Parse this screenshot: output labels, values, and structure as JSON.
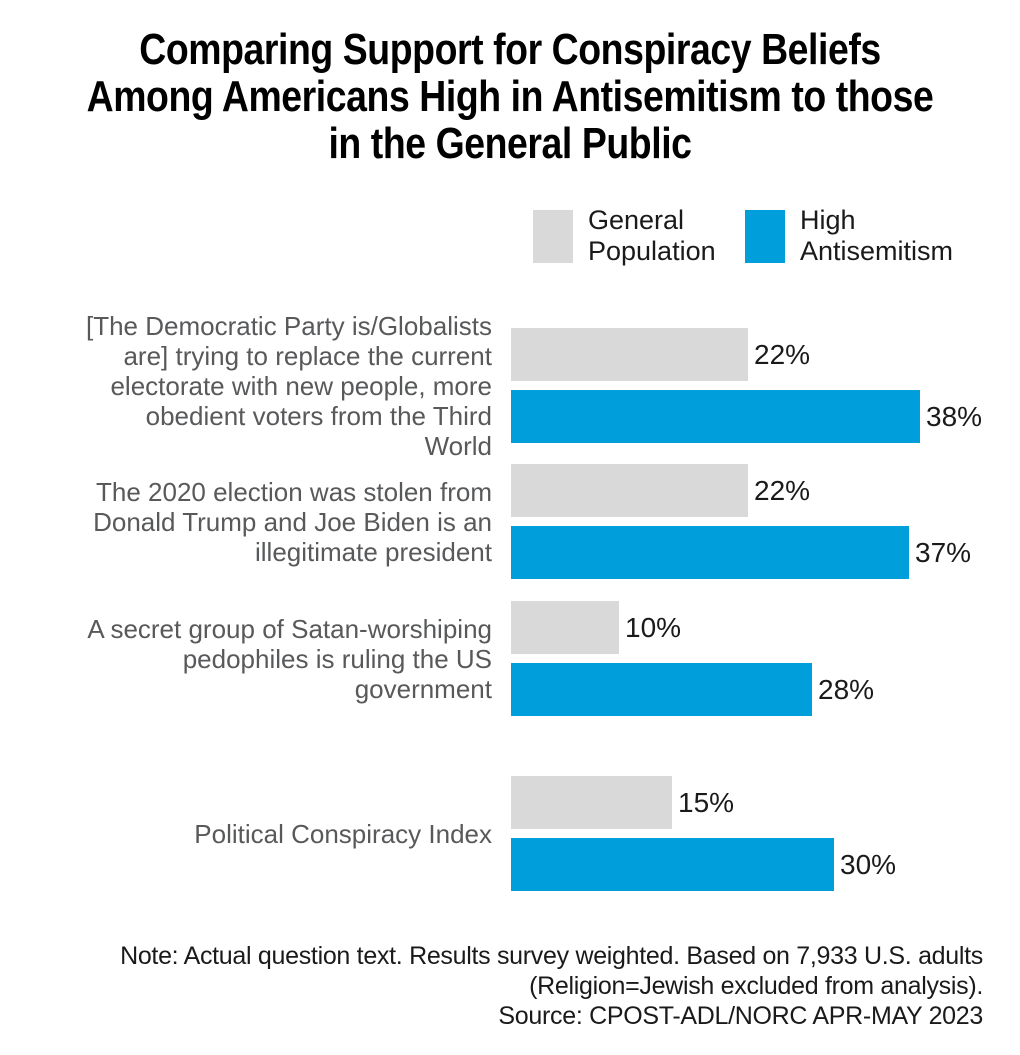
{
  "header": {
    "title": "Comparing Support for Conspiracy Beliefs Among Americans High in Antisemitism to those in the General Public",
    "title_lines": [
      "Comparing Support for Conspiracy Beliefs",
      "Among Americans High in Antisemitism to those",
      "in the General Public"
    ]
  },
  "legend": {
    "items": [
      {
        "name": "General Population",
        "label_lines": [
          "General",
          "Population"
        ],
        "color": "#D9D9D9"
      },
      {
        "name": "High Antisemitism",
        "label_lines": [
          "High",
          "Antisemitism"
        ],
        "color": "#009EDB"
      }
    ]
  },
  "chart_data": {
    "type": "bar",
    "orientation": "horizontal",
    "unit": "percent",
    "xlim": [
      0,
      40
    ],
    "grid": false,
    "legend_position": "top",
    "title": "Comparing Support for Conspiracy Beliefs Among Americans High in Antisemitism to those in the General Public",
    "categories": [
      "[The Democratic Party is/Globalists are] trying to replace the current electorate with new people, more obedient voters from the Third World",
      "The 2020 election was stolen from Donald Trump and Joe Biden is an illegitimate president",
      "A secret group of Satan-worshiping pedophiles is ruling the US government",
      "Political Conspiracy Index"
    ],
    "category_label_lines": [
      [
        "[The Democratic Party is/Globalists",
        "are] trying to replace the current",
        "electorate with new people, more",
        "obedient voters from the Third",
        "World"
      ],
      [
        "The 2020 election was stolen from",
        "Donald Trump and Joe Biden is an",
        "illegitimate president"
      ],
      [
        "A secret group of Satan-worshiping",
        "pedophiles is ruling the US",
        "government"
      ],
      [
        "Political Conspiracy Index"
      ]
    ],
    "series": [
      {
        "name": "General Population",
        "color": "#D9D9D9",
        "values": [
          22,
          22,
          10,
          15
        ],
        "value_labels": [
          "22%",
          "22%",
          "10%",
          "15%"
        ]
      },
      {
        "name": "High Antisemitism",
        "color": "#009EDB",
        "values": [
          38,
          37,
          28,
          30
        ],
        "value_labels": [
          "38%",
          "37%",
          "28%",
          "30%"
        ]
      }
    ]
  },
  "footer": {
    "note_lines": [
      "Note: Actual question text. Results survey weighted. Based on 7,933 U.S. adults",
      "(Religion=Jewish excluded from analysis).",
      "Source: CPOST-ADL/NORC APR-MAY 2023"
    ]
  },
  "colors": {
    "general_population": "#D9D9D9",
    "high_antisemitism": "#009EDB",
    "category_label_text": "#58595B",
    "body_text": "#1A1A1A",
    "background": "#FFFFFF"
  }
}
